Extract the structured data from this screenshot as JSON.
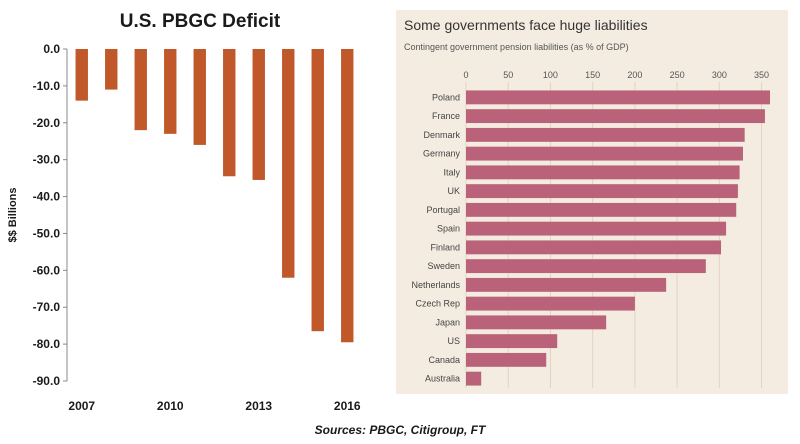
{
  "colors": {
    "deficit_bar": "#c0582a",
    "liabilities_bar": "#b9627a",
    "right_background": "#f4ece1",
    "right_grid": "#e2d4c4"
  },
  "sources": "Sources: PBGC, Citigroup, FT",
  "chart_data": [
    {
      "type": "bar",
      "title": "U.S. PBGC Deficit",
      "xlabel": "",
      "ylabel": "$$ Billions",
      "ylim": [
        -90,
        0
      ],
      "y_ticks": [
        "0.0",
        "-10.0",
        "-20.0",
        "-30.0",
        "-40.0",
        "-50.0",
        "-60.0",
        "-70.0",
        "-80.0",
        "-90.0"
      ],
      "x_tick_labels": [
        "2007",
        "2010",
        "2013",
        "2016"
      ],
      "categories": [
        "2007",
        "2008",
        "2009",
        "2010",
        "2011",
        "2012",
        "2013",
        "2014",
        "2015",
        "2016"
      ],
      "values": [
        -14,
        -11,
        -22,
        -23,
        -26,
        -34.5,
        -35.5,
        -62,
        -76.5,
        -79.5
      ],
      "grid": false
    },
    {
      "type": "bar",
      "orientation": "horizontal",
      "title": "Some governments face huge liabilities",
      "subtitle": "Contingent government pension liabilities (as % of GDP)",
      "xlim": [
        0,
        360
      ],
      "x_ticks": [
        "0",
        "50",
        "100",
        "150",
        "200",
        "250",
        "300",
        "350"
      ],
      "categories": [
        "Poland",
        "France",
        "Denmark",
        "Germany",
        "Italy",
        "UK",
        "Portugal",
        "Spain",
        "Finland",
        "Sweden",
        "Netherlands",
        "Czech Rep",
        "Japan",
        "US",
        "Canada",
        "Australia"
      ],
      "values": [
        360,
        354,
        330,
        328,
        324,
        322,
        320,
        308,
        302,
        284,
        237,
        200,
        166,
        108,
        95,
        18
      ],
      "grid": true,
      "tick_position": "top"
    }
  ]
}
